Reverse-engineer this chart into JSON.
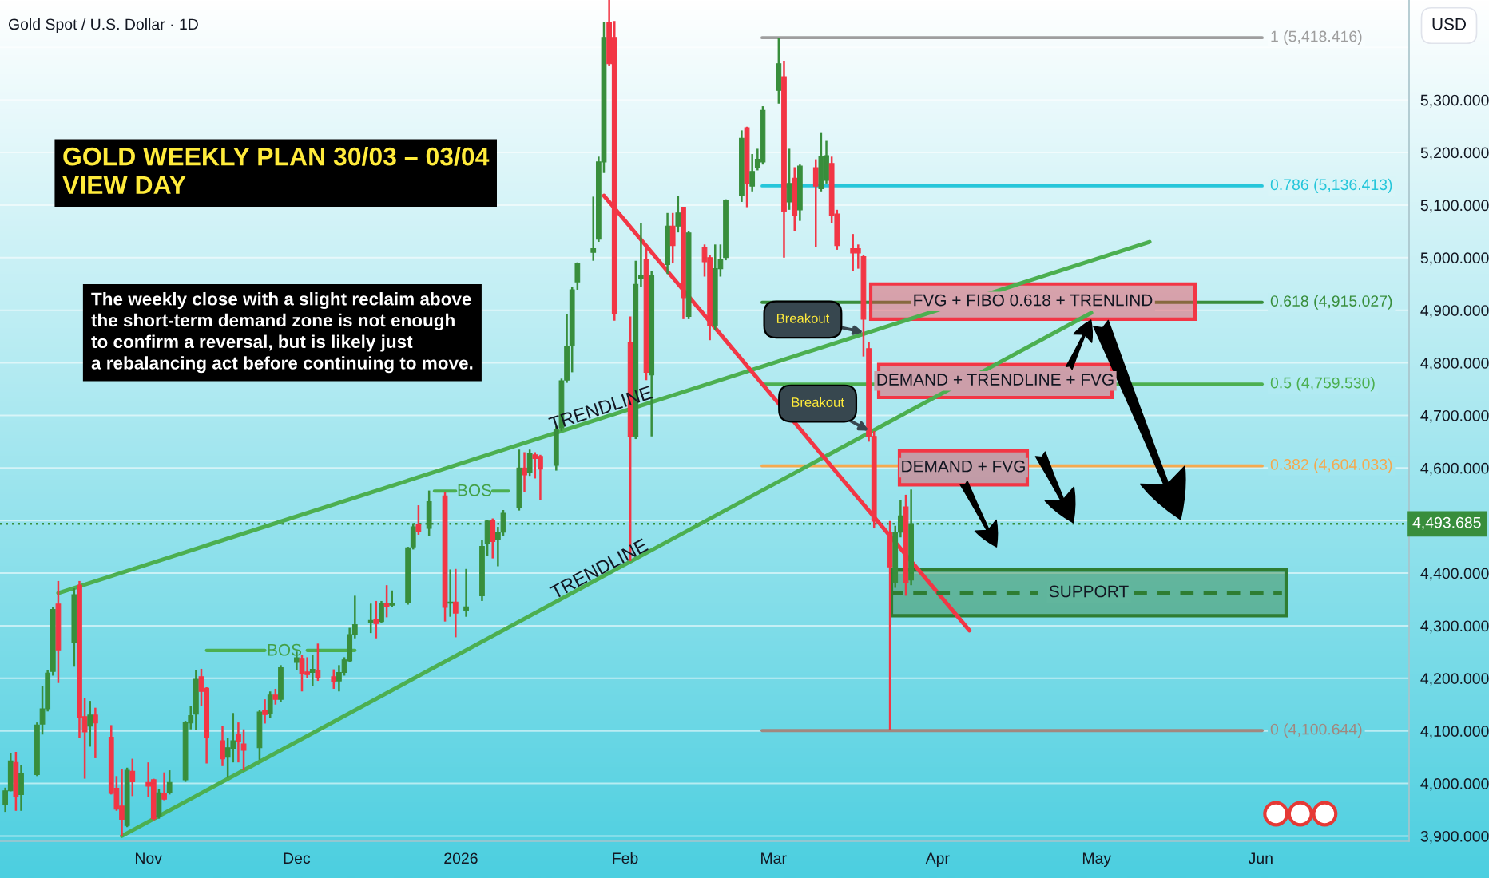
{
  "chart_data": {
    "type": "candlestick",
    "title": "Gold Spot / U.S. Dollar · 1D",
    "ylabel": "USD",
    "x": [
      "2025-10-07",
      "2025-10-08",
      "2025-10-09",
      "2025-10-10",
      "2025-10-13",
      "2025-10-14",
      "2025-10-15",
      "2025-10-16",
      "2025-10-17",
      "2025-10-20",
      "2025-10-21",
      "2025-10-22",
      "2025-10-23",
      "2025-10-24",
      "2025-10-27",
      "2025-10-28",
      "2025-10-29",
      "2025-10-30",
      "2025-10-31",
      "2025-11-03",
      "2025-11-04",
      "2025-11-05",
      "2025-11-06",
      "2025-11-07",
      "2025-11-10",
      "2025-11-11",
      "2025-11-12",
      "2025-11-13",
      "2025-11-14",
      "2025-11-17",
      "2025-11-18",
      "2025-11-19",
      "2025-11-20",
      "2025-11-21",
      "2025-11-24",
      "2025-11-25",
      "2025-11-26",
      "2025-11-27",
      "2025-11-28",
      "2025-12-01",
      "2025-12-02",
      "2025-12-03",
      "2025-12-04",
      "2025-12-05",
      "2025-12-08",
      "2025-12-09",
      "2025-12-10",
      "2025-12-11",
      "2025-12-12",
      "2025-12-15",
      "2025-12-16",
      "2025-12-17",
      "2025-12-18",
      "2025-12-19",
      "2025-12-22",
      "2025-12-23",
      "2025-12-24",
      "2025-12-26",
      "2025-12-29",
      "2025-12-30",
      "2025-12-31",
      "2026-01-02",
      "2026-01-05",
      "2026-01-06",
      "2026-01-07",
      "2026-01-08",
      "2026-01-09",
      "2026-01-12",
      "2026-01-13",
      "2026-01-14",
      "2026-01-15",
      "2026-01-16",
      "2026-01-19",
      "2026-01-20",
      "2026-01-21",
      "2026-01-22",
      "2026-01-23",
      "2026-01-26",
      "2026-01-27",
      "2026-01-28",
      "2026-01-29",
      "2026-01-30",
      "2026-02-02",
      "2026-02-03",
      "2026-02-04",
      "2026-02-05",
      "2026-02-06",
      "2026-02-09",
      "2026-02-10",
      "2026-02-11",
      "2026-02-12",
      "2026-02-13",
      "2026-02-16",
      "2026-02-17",
      "2026-02-18",
      "2026-02-19",
      "2026-02-20",
      "2026-02-23",
      "2026-02-24",
      "2026-02-25",
      "2026-02-26",
      "2026-02-27",
      "2026-03-02",
      "2026-03-03",
      "2026-03-04",
      "2026-03-05",
      "2026-03-06",
      "2026-03-09",
      "2026-03-10",
      "2026-03-11",
      "2026-03-12",
      "2026-03-13",
      "2026-03-16",
      "2026-03-17",
      "2026-03-18",
      "2026-03-19",
      "2026-03-20",
      "2026-03-23",
      "2026-03-24",
      "2026-03-25",
      "2026-03-26",
      "2026-03-27"
    ],
    "ohlc": [
      [
        3960,
        3992,
        3946,
        3986
      ],
      [
        3986,
        4058,
        3985,
        4043
      ],
      [
        4040,
        4060,
        3948,
        3976
      ],
      [
        3979,
        4035,
        3948,
        4019
      ],
      [
        4017,
        4116,
        4014,
        4111
      ],
      [
        4113,
        4185,
        4093,
        4142
      ],
      [
        4142,
        4215,
        4137,
        4210
      ],
      [
        4213,
        4336,
        4205,
        4331
      ],
      [
        4341,
        4385,
        4191,
        4254
      ],
      [
        4269,
        4371,
        4222,
        4359
      ],
      [
        4377,
        4385,
        4086,
        4126
      ],
      [
        4127,
        4162,
        4009,
        4098
      ],
      [
        4109,
        4157,
        4070,
        4130
      ],
      [
        4130,
        4144,
        4048,
        4115
      ],
      [
        4088,
        4111,
        3979,
        3981
      ],
      [
        3991,
        4014,
        3948,
        3951
      ],
      [
        3957,
        4028,
        3899,
        3932
      ],
      [
        3920,
        4030,
        3917,
        4025
      ],
      [
        4023,
        4047,
        3976,
        4003
      ],
      [
        4002,
        4040,
        3974,
        3995
      ],
      [
        4007,
        4009,
        3930,
        3933
      ],
      [
        3938,
        3989,
        3933,
        3982
      ],
      [
        3981,
        4021,
        3968,
        3970
      ],
      [
        3982,
        4025,
        3979,
        4002
      ],
      [
        4007,
        4119,
        4003,
        4116
      ],
      [
        4115,
        4147,
        4103,
        4129
      ],
      [
        4132,
        4215,
        4101,
        4198
      ],
      [
        4203,
        4218,
        4147,
        4175
      ],
      [
        4181,
        4183,
        4038,
        4087
      ],
      [
        4081,
        4109,
        4033,
        4047
      ],
      [
        4050,
        4086,
        4011,
        4068
      ],
      [
        4067,
        4134,
        4040,
        4081
      ],
      [
        4093,
        4116,
        4040,
        4079
      ],
      [
        4075,
        4103,
        4025,
        4063
      ],
      [
        4068,
        4140,
        4045,
        4136
      ],
      [
        4139,
        4160,
        4114,
        4131
      ],
      [
        4133,
        4175,
        4125,
        4168
      ],
      [
        4168,
        4180,
        4150,
        4160
      ],
      [
        4160,
        4225,
        4155,
        4220
      ],
      [
        4230,
        4251,
        4215,
        4239
      ],
      [
        4238,
        4245,
        4175,
        4208
      ],
      [
        4212,
        4240,
        4200,
        4207
      ],
      [
        4211,
        4245,
        4185,
        4217
      ],
      [
        4215,
        4266,
        4195,
        4201
      ],
      [
        4203,
        4217,
        4180,
        4193
      ],
      [
        4195,
        4225,
        4175,
        4211
      ],
      [
        4211,
        4240,
        4205,
        4235
      ],
      [
        4233,
        4296,
        4230,
        4283
      ],
      [
        4283,
        4357,
        4276,
        4302
      ],
      [
        4306,
        4342,
        4286,
        4310
      ],
      [
        4312,
        4347,
        4276,
        4304
      ],
      [
        4308,
        4347,
        4306,
        4343
      ],
      [
        4343,
        4377,
        4316,
        4336
      ],
      [
        4339,
        4367,
        4336,
        4343
      ],
      [
        4344,
        4450,
        4340,
        4448
      ],
      [
        4450,
        4495,
        4445,
        4488
      ],
      [
        4492,
        4529,
        4473,
        4480
      ],
      [
        4485,
        4557,
        4470,
        4536
      ],
      [
        4547,
        4554,
        4308,
        4335
      ],
      [
        4343,
        4407,
        4317,
        4345
      ],
      [
        4345,
        4408,
        4278,
        4324
      ],
      [
        4329,
        4408,
        4317,
        4336
      ],
      [
        4357,
        4463,
        4347,
        4451
      ],
      [
        4456,
        4501,
        4433,
        4499
      ],
      [
        4501,
        4504,
        4428,
        4460
      ],
      [
        4463,
        4488,
        4413,
        4478
      ],
      [
        4478,
        4520,
        4470,
        4514
      ],
      [
        4524,
        4635,
        4519,
        4600
      ],
      [
        4600,
        4630,
        4554,
        4587
      ],
      [
        4592,
        4635,
        4585,
        4627
      ],
      [
        4625,
        4630,
        4580,
        4618
      ],
      [
        4622,
        4625,
        4539,
        4598
      ],
      [
        4605,
        4680,
        4595,
        4673
      ],
      [
        4676,
        4770,
        4670,
        4766
      ],
      [
        4767,
        4893,
        4762,
        4832
      ],
      [
        4833,
        4944,
        4782,
        4939
      ],
      [
        4954,
        4991,
        4939,
        4989
      ],
      [
        5010,
        5116,
        4994,
        5017
      ],
      [
        5035,
        5192,
        5030,
        5182
      ],
      [
        5182,
        5448,
        5161,
        5419
      ],
      [
        5448,
        5490,
        5364,
        5369
      ],
      [
        5419,
        5450,
        4880,
        4893
      ],
      [
        4838,
        4888,
        4423,
        4660
      ],
      [
        4660,
        4994,
        4655,
        4949
      ],
      [
        4961,
        5065,
        4944,
        4967
      ],
      [
        4997,
        5025,
        4767,
        4782
      ],
      [
        4777,
        4974,
        4660,
        4966
      ],
      [
        4987,
        5085,
        4969,
        5060
      ],
      [
        5060,
        5085,
        4989,
        5023
      ],
      [
        5060,
        5118,
        5048,
        5085
      ],
      [
        5096,
        5096,
        4883,
        4924
      ],
      [
        4888,
        5050,
        4883,
        5047
      ],
      [
        5020,
        5025,
        4964,
        4992
      ],
      [
        5000,
        5005,
        4843,
        4871
      ],
      [
        4871,
        5025,
        4863,
        4979
      ],
      [
        4979,
        5025,
        4964,
        4996
      ],
      [
        5000,
        5111,
        4995,
        5109
      ],
      [
        5118,
        5242,
        5106,
        5227
      ],
      [
        5247,
        5249,
        5096,
        5141
      ],
      [
        5136,
        5197,
        5126,
        5164
      ],
      [
        5171,
        5207,
        5166,
        5187
      ],
      [
        5182,
        5288,
        5177,
        5280
      ],
      [
        5318,
        5418,
        5293,
        5369
      ],
      [
        5344,
        5374,
        5000,
        5088
      ],
      [
        5106,
        5207,
        5091,
        5141
      ],
      [
        5151,
        5172,
        5050,
        5080
      ],
      [
        5091,
        5177,
        5070,
        5174
      ],
      [
        5171,
        5187,
        5020,
        5136
      ],
      [
        5131,
        5237,
        5126,
        5192
      ],
      [
        5147,
        5222,
        5141,
        5194
      ],
      [
        5179,
        5192,
        5065,
        5080
      ],
      [
        5083,
        5091,
        5015,
        5023
      ],
      [
        5017,
        5045,
        4974,
        5009
      ],
      [
        5017,
        5025,
        4979,
        5009
      ],
      [
        5002,
        5005,
        4812,
        4883
      ],
      [
        4827,
        4840,
        4650,
        4660
      ],
      [
        4660,
        4670,
        4485,
        4499
      ],
      [
        4478,
        4499,
        4101,
        4412
      ],
      [
        4382,
        4490,
        4372,
        4478
      ],
      [
        4478,
        4539,
        4468,
        4509
      ],
      [
        4526,
        4549,
        4357,
        4382
      ],
      [
        4387,
        4559,
        4377,
        4494
      ]
    ],
    "colors": [
      "#388e3c",
      "#388e3c",
      "#f23645",
      "#388e3c",
      "#388e3c",
      "#388e3c",
      "#388e3c",
      "#388e3c",
      "#f23645",
      "#388e3c",
      "#f23645",
      "#f23645",
      "#388e3c",
      "#f23645",
      "#f23645",
      "#f23645",
      "#f23645",
      "#388e3c",
      "#f23645",
      "#f23645",
      "#f23645",
      "#388e3c",
      "#f23645",
      "#388e3c",
      "#388e3c",
      "#388e3c",
      "#388e3c",
      "#f23645",
      "#f23645",
      "#f23645",
      "#388e3c",
      "#388e3c",
      "#f23645",
      "#f23645",
      "#388e3c",
      "#f23645",
      "#388e3c",
      "#f23645",
      "#388e3c",
      "#388e3c",
      "#f23645",
      "#f23645",
      "#388e3c",
      "#f23645",
      "#f23645",
      "#388e3c",
      "#388e3c",
      "#388e3c",
      "#388e3c",
      "#388e3c",
      "#f23645",
      "#388e3c",
      "#f23645",
      "#388e3c",
      "#388e3c",
      "#388e3c",
      "#f23645",
      "#388e3c",
      "#f23645",
      "#388e3c",
      "#f23645",
      "#388e3c",
      "#388e3c",
      "#388e3c",
      "#f23645",
      "#388e3c",
      "#388e3c",
      "#388e3c",
      "#f23645",
      "#388e3c",
      "#f23645",
      "#f23645",
      "#388e3c",
      "#388e3c",
      "#388e3c",
      "#388e3c",
      "#388e3c",
      "#388e3c",
      "#388e3c",
      "#388e3c",
      "#f23645",
      "#f23645",
      "#f23645",
      "#388e3c",
      "#388e3c",
      "#f23645",
      "#388e3c",
      "#388e3c",
      "#f23645",
      "#388e3c",
      "#f23645",
      "#388e3c",
      "#f23645",
      "#f23645",
      "#388e3c",
      "#388e3c",
      "#388e3c",
      "#388e3c",
      "#f23645",
      "#388e3c",
      "#388e3c",
      "#388e3c",
      "#388e3c",
      "#f23645",
      "#388e3c",
      "#f23645",
      "#388e3c",
      "#f23645",
      "#388e3c",
      "#388e3c",
      "#f23645",
      "#f23645",
      "#f23645",
      "#f23645",
      "#f23645",
      "#f23645",
      "#f23645",
      "#f23645",
      "#388e3c",
      "#388e3c",
      "#f23645",
      "#388e3c"
    ],
    "series": [
      {
        "type": "line",
        "color": "#4caf50",
        "x": [
          "2025-10-17",
          "2026-05-11"
        ],
        "values": [
          4362,
          5030
        ]
      },
      {
        "type": "line",
        "color": "#4caf50",
        "x": [
          "2025-10-29",
          "2026-04-30"
        ],
        "values": [
          3900,
          4895
        ]
      },
      {
        "type": "line",
        "color": "#f23645",
        "x": [
          "2026-01-28",
          "2026-04-07"
        ],
        "values": [
          5118,
          4291
        ]
      },
      {
        "type": "line",
        "color": "#4caf50",
        "x": [
          "2025-11-14",
          "2025-11-25",
          "2025-11-29",
          "2025-12-03",
          "2025-12-12"
        ],
        "values": [
          4253,
          4253,
          null,
          4253,
          4253
        ]
      },
      {
        "type": "line",
        "color": "#4caf50",
        "x": [
          "2025-12-27",
          "2025-12-31",
          "2026-01-03",
          "2026-01-07",
          "2026-01-10"
        ],
        "values": [
          4556,
          4556,
          null,
          4556,
          4556
        ]
      },
      {
        "type": "line",
        "color": "#2e7d32",
        "line_style": "dashed",
        "x": [
          "2026-03-23",
          "2026-04-20",
          "2026-04-28",
          "2026-05-08",
          "2026-06-05"
        ],
        "values": [
          4362,
          4362,
          null,
          4362,
          4362
        ]
      }
    ],
    "xlim": [
      "2025-10-06",
      "2026-06-29"
    ],
    "xticks": [
      {
        "value": "2025-11-03",
        "label": "Nov"
      },
      {
        "value": "2025-12-01",
        "label": "Dec"
      },
      {
        "value": "2026-01-01",
        "label": "2026"
      },
      {
        "value": "2026-02-01",
        "label": "Feb"
      },
      {
        "value": "2026-03-01",
        "label": "Mar"
      },
      {
        "value": "2026-04-01",
        "label": "Apr"
      },
      {
        "value": "2026-05-01",
        "label": "May"
      },
      {
        "value": "2026-06-01",
        "label": "Jun"
      }
    ],
    "ylim": [
      3890,
      5490
    ],
    "yticks": [
      {
        "value": 3900,
        "label": "3,900.000"
      },
      {
        "value": 4000,
        "label": "4,000.000"
      },
      {
        "value": 4100,
        "label": "4,100.000"
      },
      {
        "value": 4200,
        "label": "4,200.000"
      },
      {
        "value": 4300,
        "label": "4,300.000"
      },
      {
        "value": 4400,
        "label": "4,400.000"
      },
      {
        "value": 4500,
        "label": null
      },
      {
        "value": 4600,
        "label": "4,600.000"
      },
      {
        "value": 4700,
        "label": "4,700.000"
      },
      {
        "value": 4800,
        "label": "4,800.000"
      },
      {
        "value": 4900,
        "label": "4,900.000"
      },
      {
        "value": 5000,
        "label": "5,000.000"
      },
      {
        "value": 5100,
        "label": "5,100.000"
      },
      {
        "value": 5200,
        "label": "5,200.000"
      },
      {
        "value": 5300,
        "label": "5,300.000"
      },
      {
        "value": 5400,
        "label": null
      }
    ],
    "grid": "y",
    "ref_lines": [
      {
        "axis": "y",
        "value": 5418.416,
        "label": "1 (5,418.416)",
        "color": "#9e9e9e"
      },
      {
        "axis": "y",
        "value": 5136.413,
        "label": "0.786 (5,136.413)",
        "color": "#26c6da"
      },
      {
        "axis": "y",
        "value": 4915.027,
        "label": "0.618 (4,915.027)",
        "color": "#388e3c"
      },
      {
        "axis": "y",
        "value": 4759.53,
        "label": "0.5 (4,759.530)",
        "color": "#4caf50"
      },
      {
        "axis": "y",
        "value": 4604.033,
        "label": "0.382 (4,604.033)",
        "color": "#f5a94e"
      },
      {
        "axis": "y",
        "value": 4100.644,
        "label": "0 (4,100.644)",
        "color": "#a1887f"
      },
      {
        "axis": "y",
        "value": 4493.685,
        "label": "4,493.685",
        "color": "#388e3c",
        "line_style": "dotted"
      }
    ],
    "bands": [
      {
        "axis": "y",
        "from": 4883,
        "to": 4950,
        "label": "FVG + FIBO 0.618 + TRENLIND",
        "color": "#f23645"
      },
      {
        "axis": "y",
        "from": 4734,
        "to": 4797,
        "label": "DEMAND + TRENDLINE + FVG",
        "color": "#f23645"
      },
      {
        "axis": "y",
        "from": 4568,
        "to": 4633,
        "label": "DEMAND + FVG",
        "color": "#f23645"
      },
      {
        "axis": "y",
        "from": 4319,
        "to": 4406,
        "label": "SUPPORT",
        "color": "#2e7d32"
      }
    ],
    "annotations": [
      "GOLD WEEKLY PLAN 30/03 – 03/04\nVIEW DAY",
      "The weekly close with a slight reclaim above\nthe short-term demand zone is not enough\nto confirm a reversal, but is likely just\na rebalancing act before continuing to move.",
      "BOS",
      "BOS",
      {
        "text": "Breakout",
        "x": "2026-03-18",
        "y": 4858
      },
      {
        "text": "Breakout",
        "x": "2026-03-19",
        "y": 4671
      },
      {
        "text": "TRENDLINE",
        "x": "2026-01-28",
        "y": 4695
      },
      {
        "text": "TRENDLINE",
        "x": "2026-01-28",
        "y": 4391
      }
    ]
  }
}
